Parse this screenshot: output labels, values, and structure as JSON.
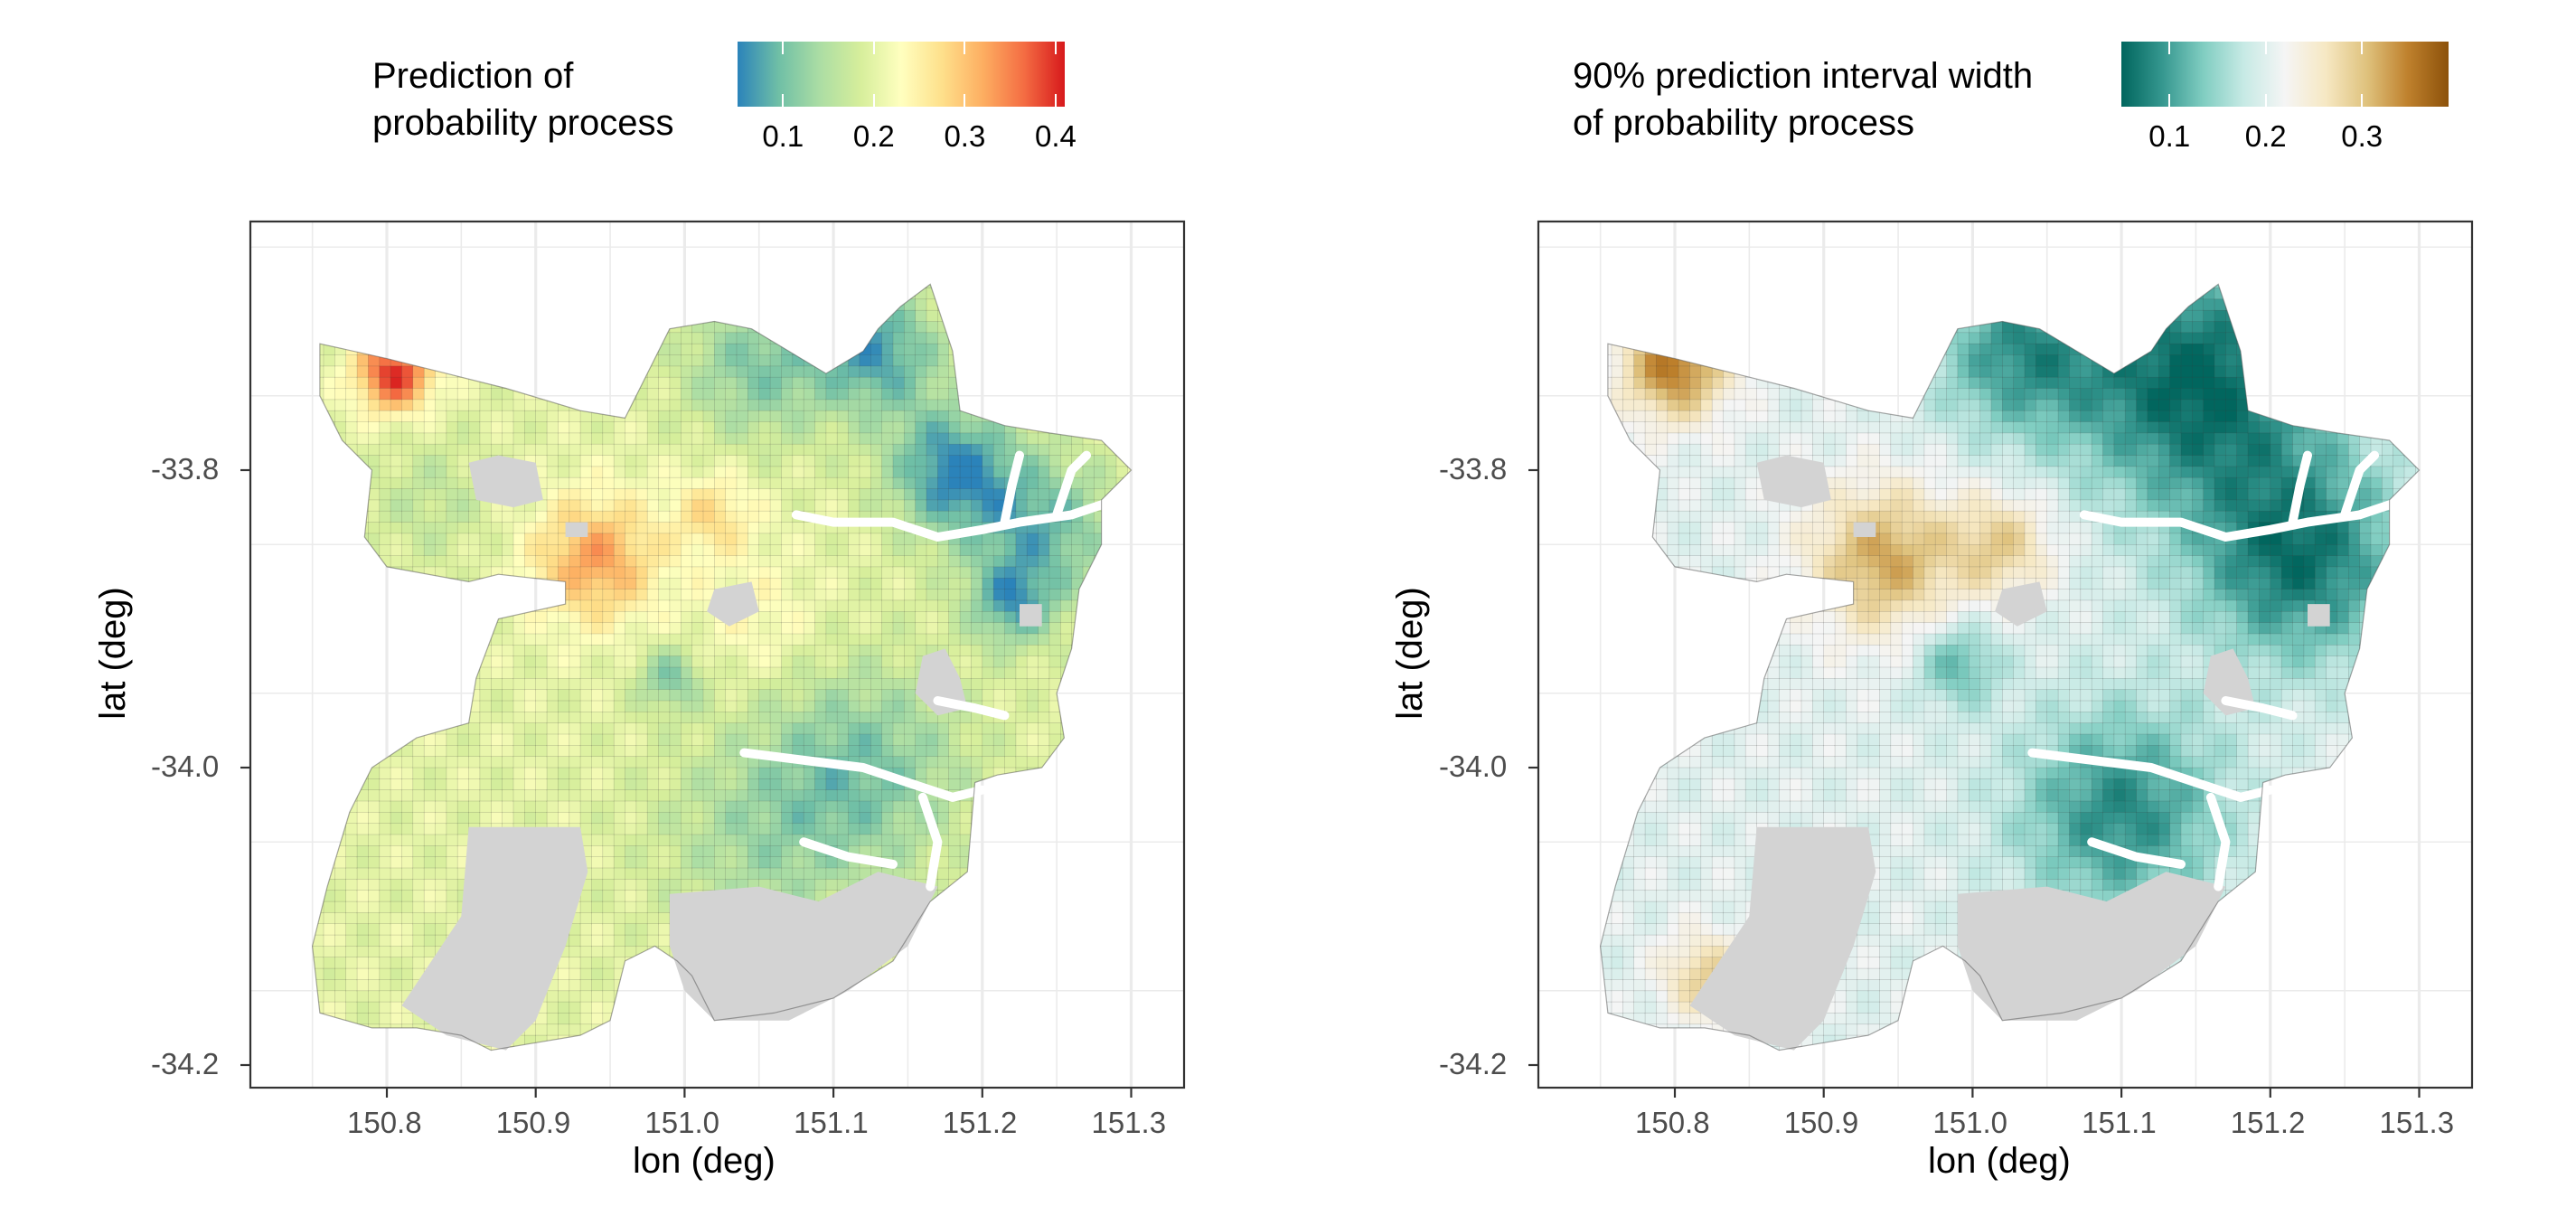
{
  "panels": [
    {
      "legend_title": "Prediction of\nprobability process",
      "legend_ticks": [
        "0.1",
        "0.2",
        "0.3",
        "0.4"
      ],
      "legend_tick_values": [
        0.1,
        0.2,
        0.3,
        0.4
      ],
      "legend_range": [
        0.05,
        0.41
      ],
      "palette": [
        "#2b83ba",
        "#6fbfa6",
        "#abdda4",
        "#d6ee9b",
        "#ffffbf",
        "#fee08b",
        "#fdae61",
        "#f46d43",
        "#d7191c"
      ],
      "x_ticks": [
        "150.8",
        "150.9",
        "151.0",
        "151.1",
        "151.2",
        "151.3"
      ],
      "y_ticks": [
        "-33.8",
        "-34.0",
        "-34.2"
      ],
      "xlabel": "lon (deg)",
      "ylabel": "lat (deg)"
    },
    {
      "legend_title": "90% prediction interval width\nof probability process",
      "legend_ticks": [
        "0.1",
        "0.2",
        "0.3"
      ],
      "legend_tick_values": [
        0.1,
        0.2,
        0.3
      ],
      "legend_range": [
        0.05,
        0.39
      ],
      "palette": [
        "#01665e",
        "#35978f",
        "#80cdc1",
        "#c7eae5",
        "#f5f5f5",
        "#f6e8c3",
        "#dfc27d",
        "#bf812d",
        "#8c510a"
      ],
      "x_ticks": [
        "150.8",
        "150.9",
        "151.0",
        "151.1",
        "151.2",
        "151.3"
      ],
      "y_ticks": [
        "-33.8",
        "-34.0",
        "-34.2"
      ],
      "xlabel": "lon (deg)",
      "ylabel": "lat (deg)"
    }
  ],
  "colors": {
    "water_gray": "#d3d3d3",
    "grid": "#ebebeb",
    "border": "#333333"
  }
}
